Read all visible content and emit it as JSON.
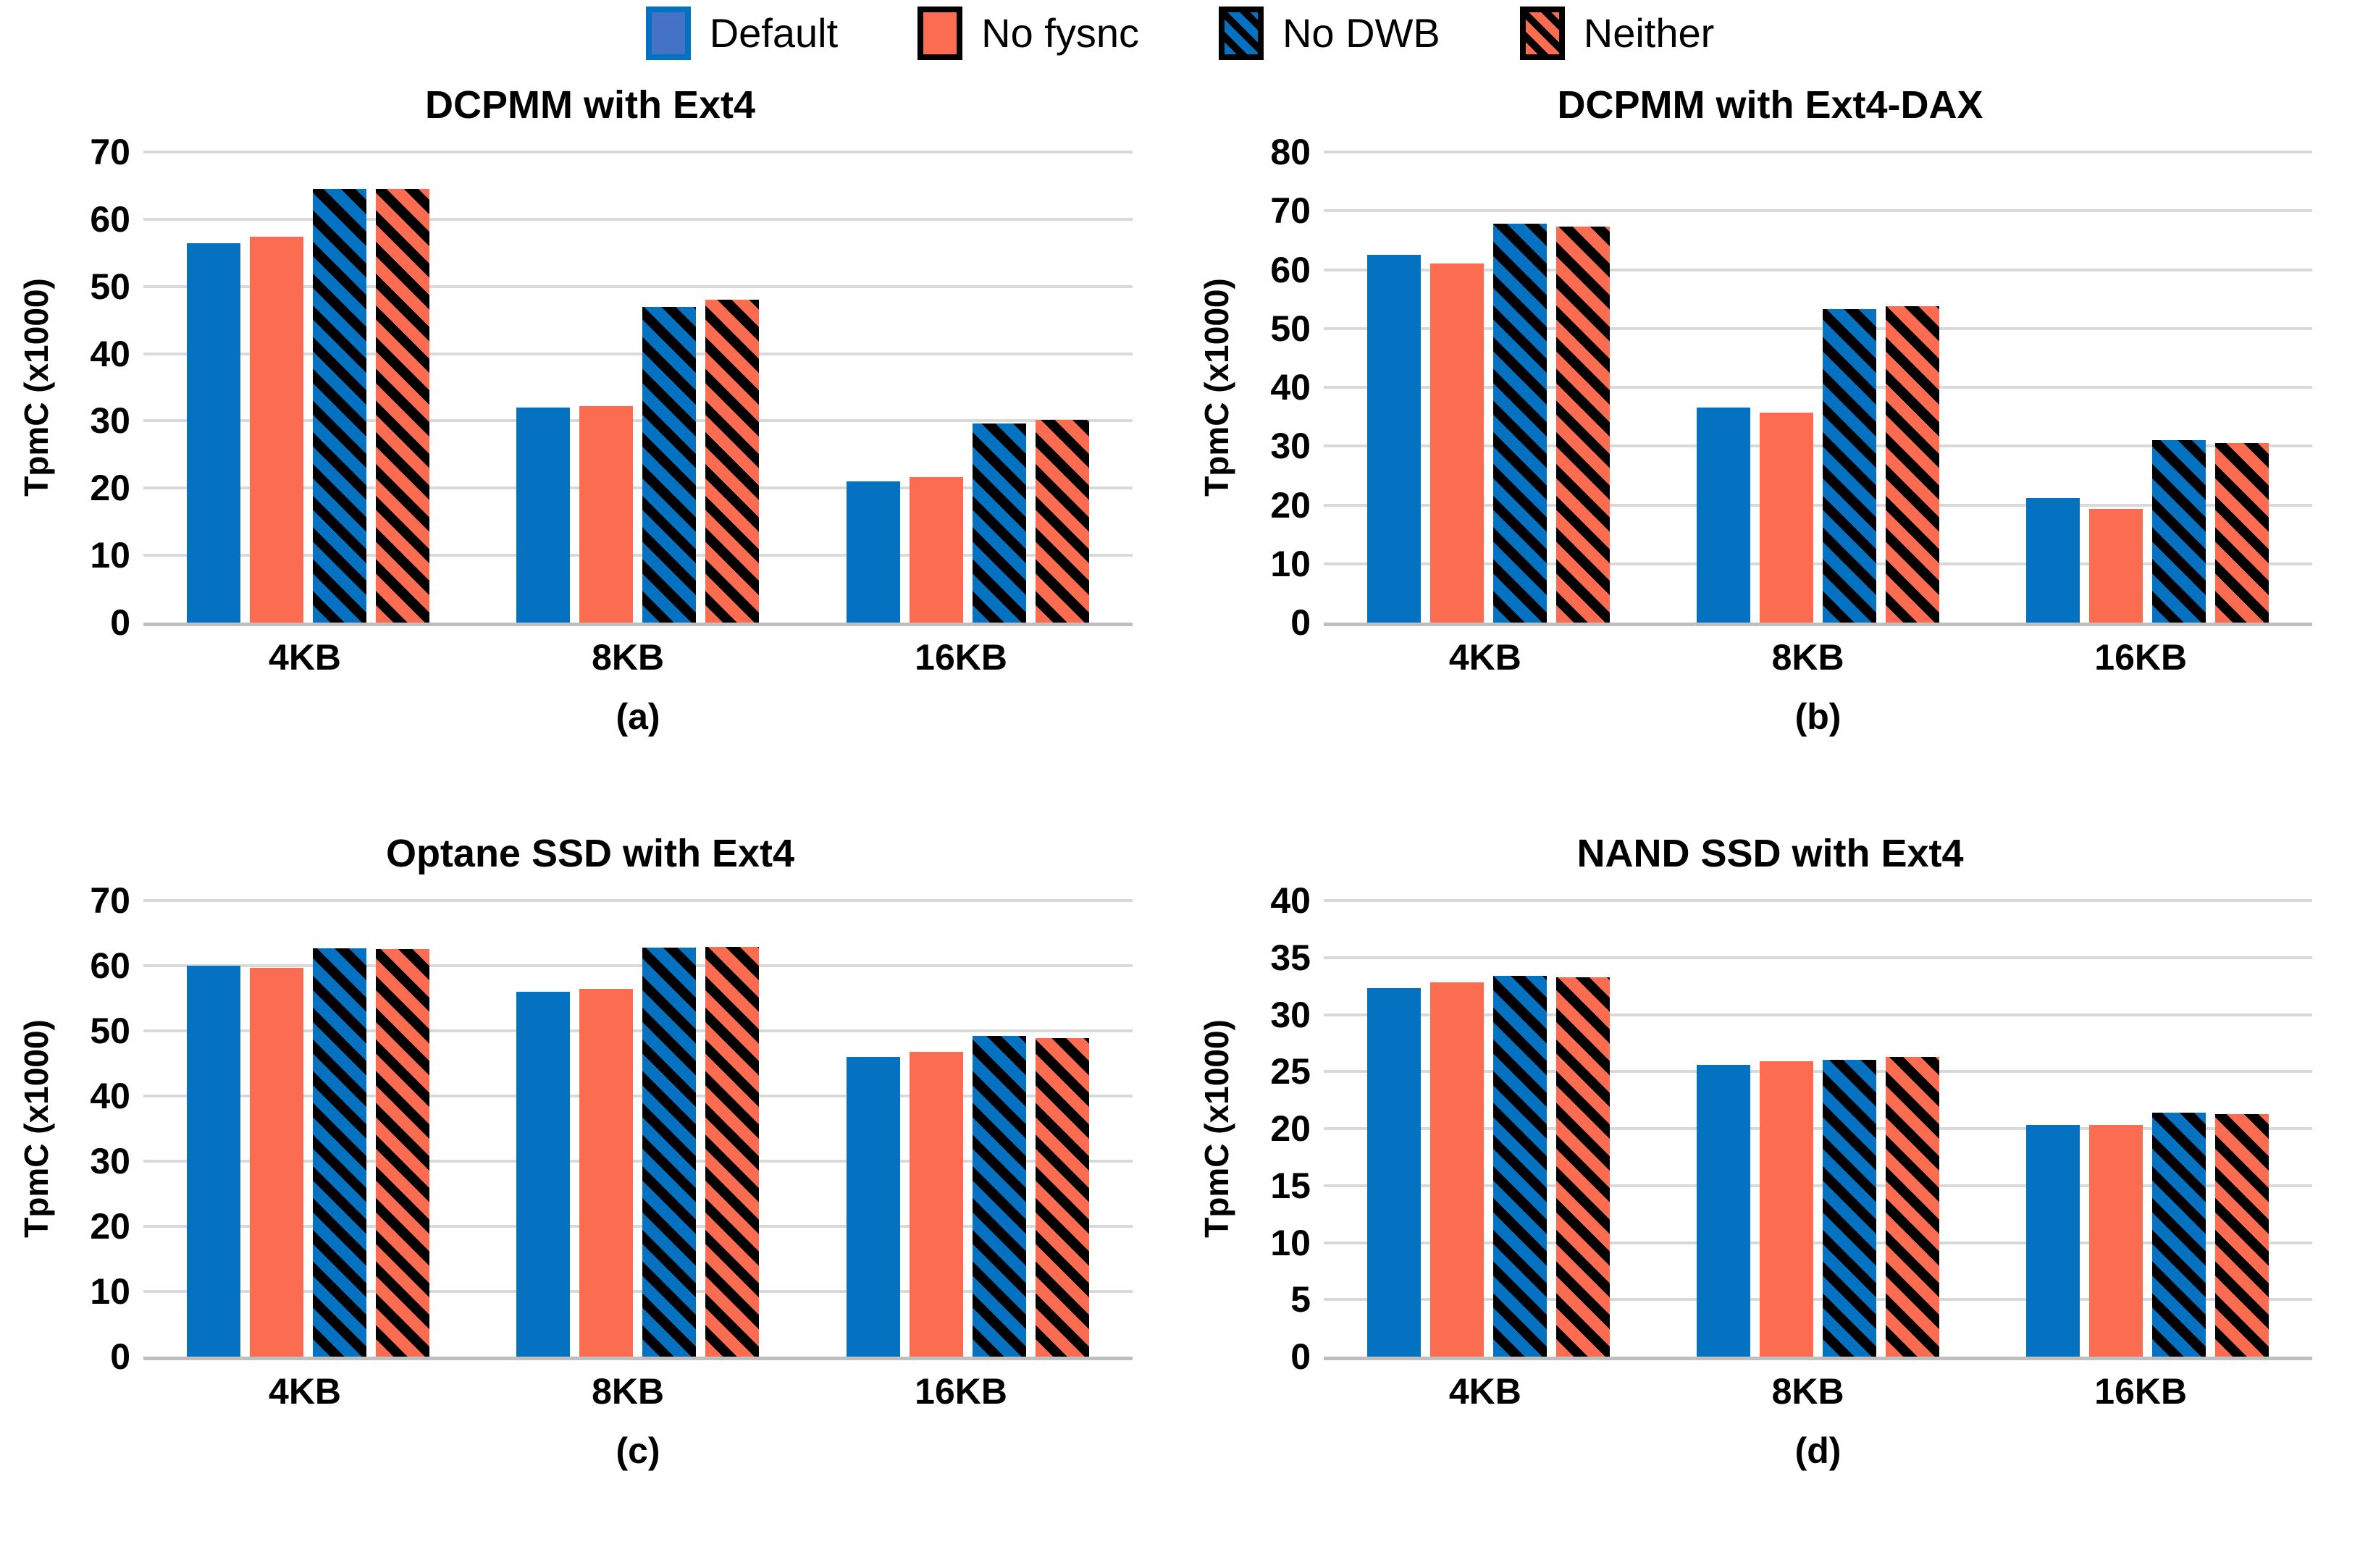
{
  "colors": {
    "blue": "#0571C1",
    "red": "#FC6C51",
    "legend_default_fill": "#4472C4",
    "hatch_stripe": "#000000",
    "gridline": "#D9D9D9",
    "axis_line": "#BFBFBF",
    "text": "#000000"
  },
  "legend": {
    "position": "top-center",
    "items": [
      {
        "label": "Default",
        "swatch": "solid-blue-outlined"
      },
      {
        "label": "No fysnc",
        "swatch": "solid-red"
      },
      {
        "label": "No DWB",
        "swatch": "hatch-blue"
      },
      {
        "label": "Neither",
        "swatch": "hatch-red"
      }
    ]
  },
  "chart_data": [
    {
      "type": "bar",
      "title": "DCPMM with Ext4",
      "caption": "(a)",
      "xlabel": "",
      "ylabel": "TpmC (x1000)",
      "ylim": [
        0,
        70
      ],
      "ytick_step": 10,
      "grid": true,
      "categories": [
        "4KB",
        "8KB",
        "16KB"
      ],
      "series": [
        {
          "name": "Default",
          "pattern": "solid-blue",
          "values": [
            56.4,
            32.0,
            21.0
          ]
        },
        {
          "name": "No fysnc",
          "pattern": "solid-red",
          "values": [
            57.4,
            32.2,
            21.6
          ]
        },
        {
          "name": "No DWB",
          "pattern": "hatch-blue",
          "values": [
            64.5,
            47.0,
            29.6
          ]
        },
        {
          "name": "Neither",
          "pattern": "hatch-red",
          "values": [
            64.5,
            48.0,
            30.2
          ]
        }
      ]
    },
    {
      "type": "bar",
      "title": "DCPMM with Ext4-DAX",
      "caption": "(b)",
      "xlabel": "",
      "ylabel": "TpmC (x1000)",
      "ylim": [
        0,
        80
      ],
      "ytick_step": 10,
      "grid": true,
      "categories": [
        "4KB",
        "8KB",
        "16KB"
      ],
      "series": [
        {
          "name": "Default",
          "pattern": "solid-blue",
          "values": [
            62.5,
            36.5,
            21.2
          ]
        },
        {
          "name": "No fysnc",
          "pattern": "solid-red",
          "values": [
            61.0,
            35.7,
            19.3
          ]
        },
        {
          "name": "No DWB",
          "pattern": "hatch-blue",
          "values": [
            67.8,
            53.3,
            31.0
          ]
        },
        {
          "name": "Neither",
          "pattern": "hatch-red",
          "values": [
            67.3,
            53.8,
            30.5
          ]
        }
      ]
    },
    {
      "type": "bar",
      "title": "Optane SSD with Ext4",
      "caption": "(c)",
      "xlabel": "",
      "ylabel": "TpmC (x1000)",
      "ylim": [
        0,
        70
      ],
      "ytick_step": 10,
      "grid": true,
      "categories": [
        "4KB",
        "8KB",
        "16KB"
      ],
      "series": [
        {
          "name": "Default",
          "pattern": "solid-blue",
          "values": [
            60.0,
            56.0,
            46.0
          ]
        },
        {
          "name": "No fysnc",
          "pattern": "solid-red",
          "values": [
            59.7,
            56.4,
            46.8
          ]
        },
        {
          "name": "No DWB",
          "pattern": "hatch-blue",
          "values": [
            62.7,
            62.8,
            49.2
          ]
        },
        {
          "name": "Neither",
          "pattern": "hatch-red",
          "values": [
            62.5,
            62.9,
            48.9
          ]
        }
      ]
    },
    {
      "type": "bar",
      "title": "NAND SSD with Ext4",
      "caption": "(d)",
      "xlabel": "",
      "ylabel": "TpmC (x1000)",
      "ylim": [
        0,
        40
      ],
      "ytick_step": 5,
      "grid": true,
      "categories": [
        "4KB",
        "8KB",
        "16KB"
      ],
      "series": [
        {
          "name": "Default",
          "pattern": "solid-blue",
          "values": [
            32.3,
            25.6,
            20.3
          ]
        },
        {
          "name": "No fysnc",
          "pattern": "solid-red",
          "values": [
            32.8,
            25.9,
            20.3
          ]
        },
        {
          "name": "No DWB",
          "pattern": "hatch-blue",
          "values": [
            33.4,
            26.0,
            21.4
          ]
        },
        {
          "name": "Neither",
          "pattern": "hatch-red",
          "values": [
            33.3,
            26.3,
            21.3
          ]
        }
      ]
    }
  ]
}
